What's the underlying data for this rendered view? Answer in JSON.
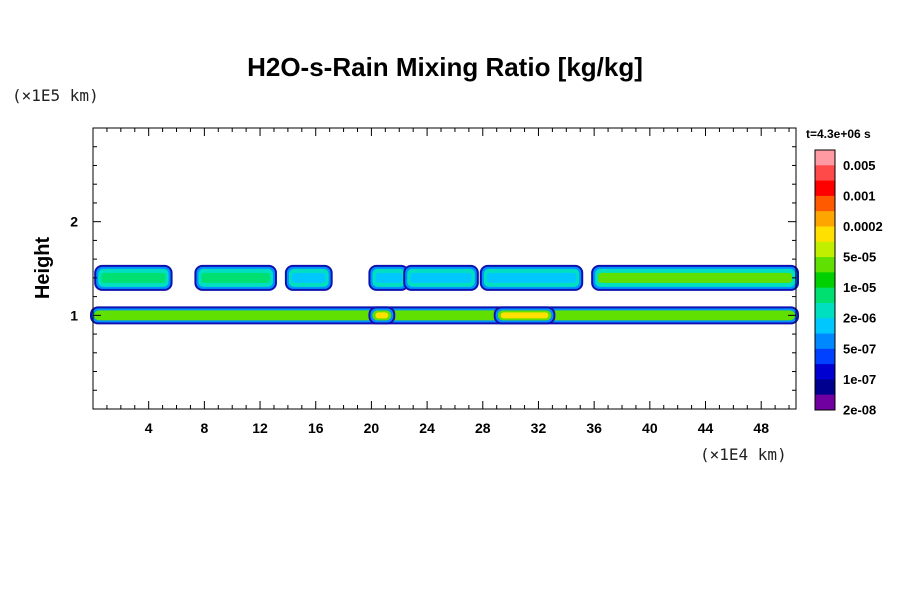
{
  "chart_data": {
    "type": "heatmap",
    "title": "H2O-s-Rain Mixing Ratio [kg/kg]",
    "ylabel": "Height",
    "x_unit": "(×1E4 km)",
    "y_unit": "(×1E5 km)",
    "xlim": [
      0,
      50.5
    ],
    "ylim": [
      0,
      3
    ],
    "x_ticks": [
      4,
      8,
      12,
      16,
      20,
      24,
      28,
      32,
      36,
      40,
      44,
      48
    ],
    "y_ticks": [
      1,
      2
    ],
    "time_label": "t=4.3e+06 s",
    "colorbar": {
      "labels": [
        "0.005",
        "0.001",
        "0.0002",
        "5e-05",
        "1e-05",
        "2e-06",
        "5e-07",
        "1e-07",
        "2e-08"
      ],
      "colors": [
        "#ff9aa2",
        "#ff4a4a",
        "#ff0000",
        "#ff5a00",
        "#ffa500",
        "#ffe000",
        "#c0f000",
        "#60e000",
        "#00d000",
        "#00e070",
        "#00e0c0",
        "#00c8ff",
        "#0088ff",
        "#0040ff",
        "#0000d0",
        "#00008f",
        "#7000a0"
      ]
    },
    "layers": [
      {
        "name": "upper-rain-layer",
        "height": 1.4,
        "segments": [
          {
            "x": [
              0.3,
              5.5
            ],
            "level": "1e-05"
          },
          {
            "x": [
              7.5,
              13.0
            ],
            "level": "1e-05"
          },
          {
            "x": [
              14.0,
              17.0
            ],
            "level": "2e-06"
          },
          {
            "x": [
              20.0,
              22.5
            ],
            "level": "2e-06"
          },
          {
            "x": [
              22.5,
              27.5
            ],
            "level": "2e-06"
          },
          {
            "x": [
              28.0,
              35.0
            ],
            "level": "2e-06"
          },
          {
            "x": [
              36.0,
              50.5
            ],
            "level": "5e-05"
          }
        ]
      },
      {
        "name": "lower-rain-layer",
        "height": 1.0,
        "segments": [
          {
            "x": [
              0.0,
              50.5
            ],
            "level": "5e-05"
          },
          {
            "x": [
              20.0,
              21.5
            ],
            "level": "0.0002"
          },
          {
            "x": [
              29.0,
              33.0
            ],
            "level": "0.0002"
          }
        ]
      }
    ]
  }
}
